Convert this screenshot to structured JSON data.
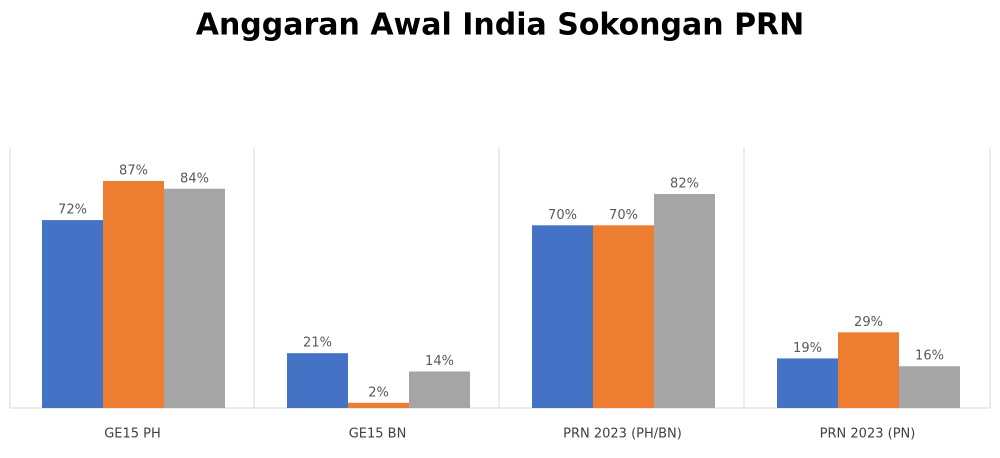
{
  "chart_data": {
    "type": "bar",
    "title": "Anggaran Awal India Sokongan PRN",
    "categories": [
      "GE15 PH",
      "GE15 BN",
      "PRN 2023 (PH/BN)",
      "PRN 2023 (PN)"
    ],
    "series": [
      {
        "color": "#4472c4",
        "values": [
          72,
          21,
          70,
          19
        ],
        "value_labels": [
          "72%",
          "21%",
          "70%",
          "19%"
        ]
      },
      {
        "color": "#ed7d31",
        "values": [
          87,
          2,
          70,
          29
        ],
        "value_labels": [
          "87%",
          "2%",
          "70%",
          "29%"
        ]
      },
      {
        "color": "#a5a5a5",
        "values": [
          84,
          14,
          82,
          16
        ],
        "value_labels": [
          "84%",
          "14%",
          "82%",
          "16%"
        ]
      }
    ],
    "ylim": [
      0,
      100
    ]
  }
}
